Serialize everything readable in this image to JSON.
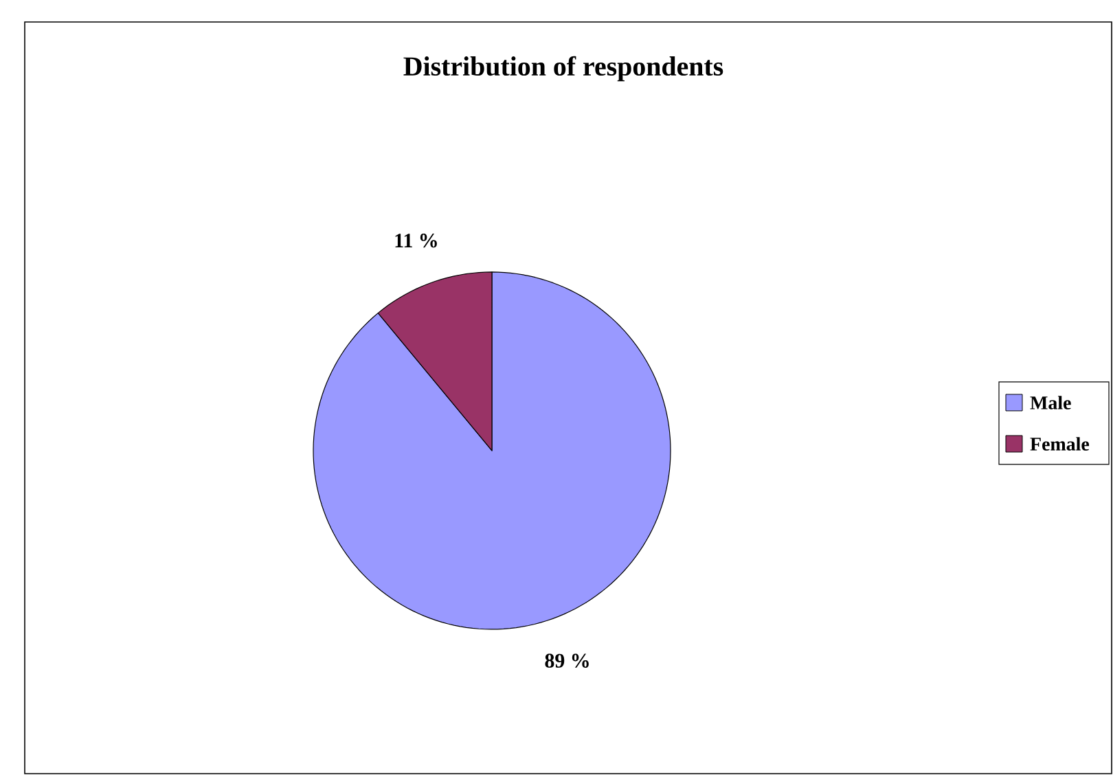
{
  "chart_data": {
    "type": "pie",
    "title": "Distribution of respondents",
    "categories": [
      "Male",
      "Female"
    ],
    "values": [
      89,
      11
    ],
    "colors": [
      "#9999ff",
      "#993366"
    ],
    "value_labels": [
      "89 %",
      "11 %"
    ],
    "legend": "right"
  }
}
